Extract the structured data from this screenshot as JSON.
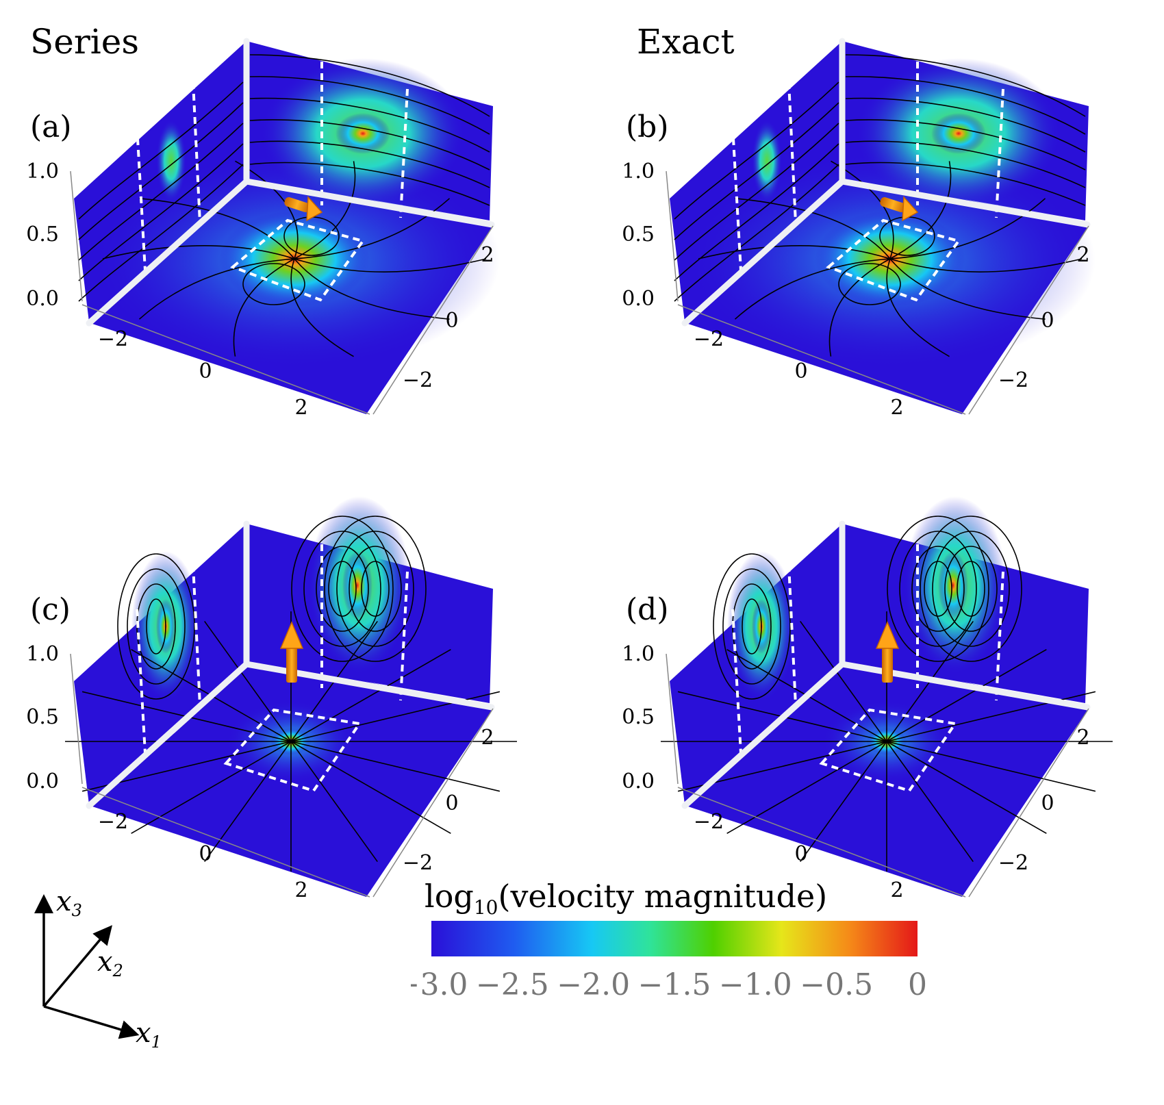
{
  "columns": {
    "left": "Series",
    "right": "Exact"
  },
  "panels": [
    {
      "id": "a",
      "label": "(a)",
      "force_direction": "horizontal"
    },
    {
      "id": "b",
      "label": "(b)",
      "force_direction": "horizontal"
    },
    {
      "id": "c",
      "label": "(c)",
      "force_direction": "vertical"
    },
    {
      "id": "d",
      "label": "(d)",
      "force_direction": "vertical"
    }
  ],
  "axes": {
    "vertical_ticks": [
      "1.0",
      "0.5",
      "0.0"
    ],
    "x1_ticks": [
      "−2",
      "0",
      "2"
    ],
    "x2_ticks": [
      "2",
      "0",
      "−2"
    ]
  },
  "coordinate_axes": {
    "x1": "x",
    "x1_sub": "1",
    "x2": "x",
    "x2_sub": "2",
    "x3": "x",
    "x3_sub": "3"
  },
  "colorbar": {
    "title_prefix": "log",
    "title_sub": "10",
    "title_suffix": "(velocity magnitude)",
    "ticks": [
      "−3.0",
      "−2.5",
      "−2.0",
      "−1.5",
      "−1.0",
      "−0.5",
      "0"
    ],
    "colors": [
      "#2a10d8",
      "#1f5cf0",
      "#17c8f4",
      "#2fe39a",
      "#4fd000",
      "#e6e61a",
      "#f58a18",
      "#e41818"
    ]
  }
}
